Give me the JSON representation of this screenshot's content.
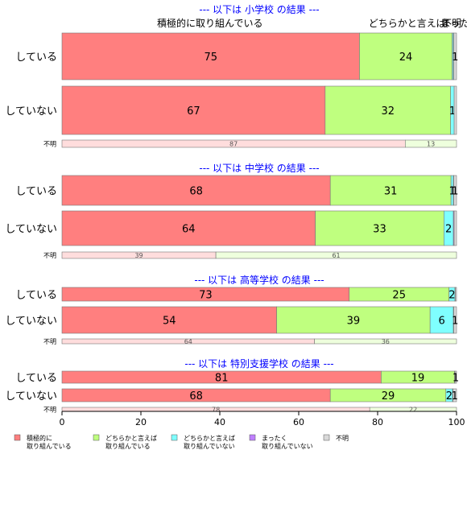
{
  "chart_data": {
    "type": "bar",
    "orientation": "horizontal",
    "stacked": true,
    "xlim": [
      0,
      100
    ],
    "x_ticks": [
      "0",
      "20",
      "40",
      "60",
      "80",
      "100"
    ],
    "top_labels": [
      {
        "text": "積極的に取り組んでいる",
        "at_value": 37.5
      },
      {
        "text": "どちらかと言えば",
        "at_value": 87.5
      },
      {
        "text": "不明",
        "at_value": 98.8
      },
      {
        "text": "まった",
        "at_value": 99.7
      }
    ],
    "panels": [
      {
        "header": "--- 以下は 小学校 の結果 ---",
        "rows": [
          {
            "label": "している",
            "size": "large",
            "values": [
              75.4,
              23.5,
              0.3,
              0.1,
              0.7
            ],
            "labels": [
              "75",
              "24",
              "",
              "",
              "1"
            ]
          },
          {
            "label": "していない",
            "size": "large",
            "values": [
              66.7,
              31.8,
              0.9,
              0.0,
              0.6
            ],
            "labels": [
              "67",
              "32",
              "1",
              "",
              ""
            ]
          },
          {
            "label": "不明",
            "size": "small",
            "values": [
              87.0,
              13.0,
              0,
              0,
              0
            ],
            "labels": [
              "87",
              "13",
              "",
              "",
              ""
            ]
          }
        ]
      },
      {
        "header": "--- 以下は 中学校 の結果 ---",
        "rows": [
          {
            "label": "している",
            "size": "large",
            "values": [
              68.0,
              30.6,
              0.6,
              0.1,
              0.7
            ],
            "labels": [
              "68",
              "31",
              "1",
              "",
              "1"
            ]
          },
          {
            "label": "していない",
            "size": "large",
            "values": [
              64.2,
              32.6,
              2.4,
              0.2,
              0.6
            ],
            "labels": [
              "64",
              "33",
              "2",
              "",
              ""
            ]
          },
          {
            "label": "不明",
            "size": "small",
            "values": [
              39.0,
              61.0,
              0,
              0,
              0
            ],
            "labels": [
              "39",
              "61",
              "",
              "",
              ""
            ]
          }
        ]
      },
      {
        "header": "--- 以下は 高等学校 の結果 ---",
        "rows": [
          {
            "label": "している",
            "size": "medium",
            "values": [
              72.8,
              25.3,
              1.5,
              0.1,
              0.3
            ],
            "labels": [
              "73",
              "25",
              "2",
              "",
              ""
            ]
          },
          {
            "label": "していない",
            "size": "large",
            "values": [
              54.4,
              38.9,
              5.9,
              0.1,
              0.7
            ],
            "labels": [
              "54",
              "39",
              "6",
              "",
              "1"
            ]
          },
          {
            "label": "不明",
            "size": "tiny",
            "values": [
              64.0,
              36.0,
              0,
              0,
              0
            ],
            "labels": [
              "64",
              "36",
              "",
              "",
              ""
            ]
          }
        ]
      },
      {
        "header": "--- 以下は 特別支援学校 の結果 ---",
        "rows": [
          {
            "label": "している",
            "size": "medium",
            "values": [
              80.9,
              18.6,
              0.1,
              0.0,
              0.4
            ],
            "labels": [
              "81",
              "19",
              "",
              "",
              "1"
            ]
          },
          {
            "label": "していない",
            "size": "medium",
            "values": [
              68.0,
              29.3,
              1.7,
              0.1,
              0.9
            ],
            "labels": [
              "68",
              "29",
              "2",
              "",
              "1"
            ]
          },
          {
            "label": "不明",
            "size": "tiny",
            "values": [
              78.0,
              22.0,
              0,
              0,
              0
            ],
            "labels": [
              "78",
              "22",
              "",
              "",
              ""
            ]
          }
        ]
      }
    ],
    "legend": {
      "placement": "bottom",
      "items": [
        {
          "lines": [
            "積極的に",
            "取り組んでいる"
          ],
          "color": "#ff7f7f"
        },
        {
          "lines": [
            "どちらかと言えば",
            "取り組んでいる"
          ],
          "color": "#bfff7f"
        },
        {
          "lines": [
            "どちらかと言えば",
            "取り組んでいない"
          ],
          "color": "#7fffff"
        },
        {
          "lines": [
            "まったく",
            "取り組んでいない"
          ],
          "color": "#bf7fff"
        },
        {
          "lines": [
            "不明"
          ],
          "color": "#d9d9d9"
        }
      ]
    },
    "colors": [
      "#ff7f7f",
      "#bfff7f",
      "#7fffff",
      "#bf7fff",
      "#d9d9d9"
    ],
    "light_colors": [
      "#ffdddd",
      "#eeffdd",
      "#ddffff",
      "#eeddff",
      "#f2f2f2"
    ]
  }
}
